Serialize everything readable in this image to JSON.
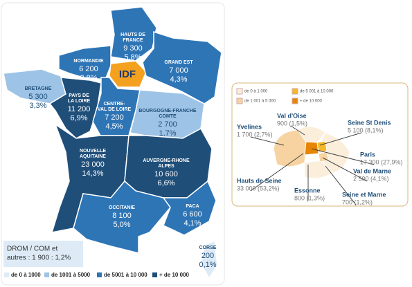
{
  "regions": [
    {
      "name_lines": [
        "HAUTS DE",
        "FRANCE"
      ],
      "value": "9 300",
      "share": "5,8%"
    },
    {
      "name_lines": [
        "NORMANDIE"
      ],
      "value": "6 200",
      "share": "3,8%"
    },
    {
      "name_lines": [
        "BRETAGNE"
      ],
      "value": "5 300",
      "share": "3,3%"
    },
    {
      "name_lines": [
        "IDF"
      ]
    },
    {
      "name_lines": [
        "GRAND EST"
      ],
      "value": "7 000",
      "share": "4,3%"
    },
    {
      "name_lines": [
        "PAYS DE",
        "LA LOIRE"
      ],
      "value": "11 200",
      "share": "6,9%"
    },
    {
      "name_lines": [
        "CENTRE-",
        "VAL DE LOIRE"
      ],
      "value": "7 200",
      "share": "4,5%"
    },
    {
      "name_lines": [
        "BOURGOGNE-FRANCHE",
        "COMTE"
      ],
      "value": "2 700",
      "share": "1,7%"
    },
    {
      "name_lines": [
        "NOUVELLE",
        "AQUITAINE"
      ],
      "value": "23 000",
      "share": "14,3%"
    },
    {
      "name_lines": [
        "AUVERGNE-RHONE",
        "ALPES"
      ],
      "value": "10 600",
      "share": "6,6%"
    },
    {
      "name_lines": [
        "OCCITANIE"
      ],
      "value": "8 100",
      "share": "5,0%"
    },
    {
      "name_lines": [
        "PACA"
      ],
      "value": "6 600",
      "share": "4,1%"
    },
    {
      "name_lines": [
        "CORSE"
      ],
      "value": "200",
      "share": "0,1%"
    }
  ],
  "drom_lines": [
    "DROM / COM et",
    "autres : 1 900 : 1,2%"
  ],
  "legend": [
    "de 0 à 1000",
    "de 1001 à 5000",
    "de 5001 à 10 000",
    "+ de 10 000"
  ],
  "inset": {
    "legend": [
      "de 0 à 1 000",
      "de 5 001 à 10 000",
      "de 1 001 à 5 000",
      "+ de 10 000"
    ],
    "departments": [
      {
        "name": "Val d'Oise",
        "value": "900 (1,5%)"
      },
      {
        "name": "Yvelines",
        "value": "1 700 (2,7%)"
      },
      {
        "name": "Seine St Denis",
        "value": "5 100 (8,1%)"
      },
      {
        "name": "Paris",
        "value": "17 300 (27,9%)"
      },
      {
        "name": "Val de Marne",
        "value": "2 500 (4,1%)"
      },
      {
        "name": "Hauts de Seine",
        "value": "33 000 (53,2%)"
      },
      {
        "name": "Essonne",
        "value": "800 (1,3%)"
      },
      {
        "name": "Seine et Marne",
        "value": "700 (1,2%)"
      }
    ]
  }
}
